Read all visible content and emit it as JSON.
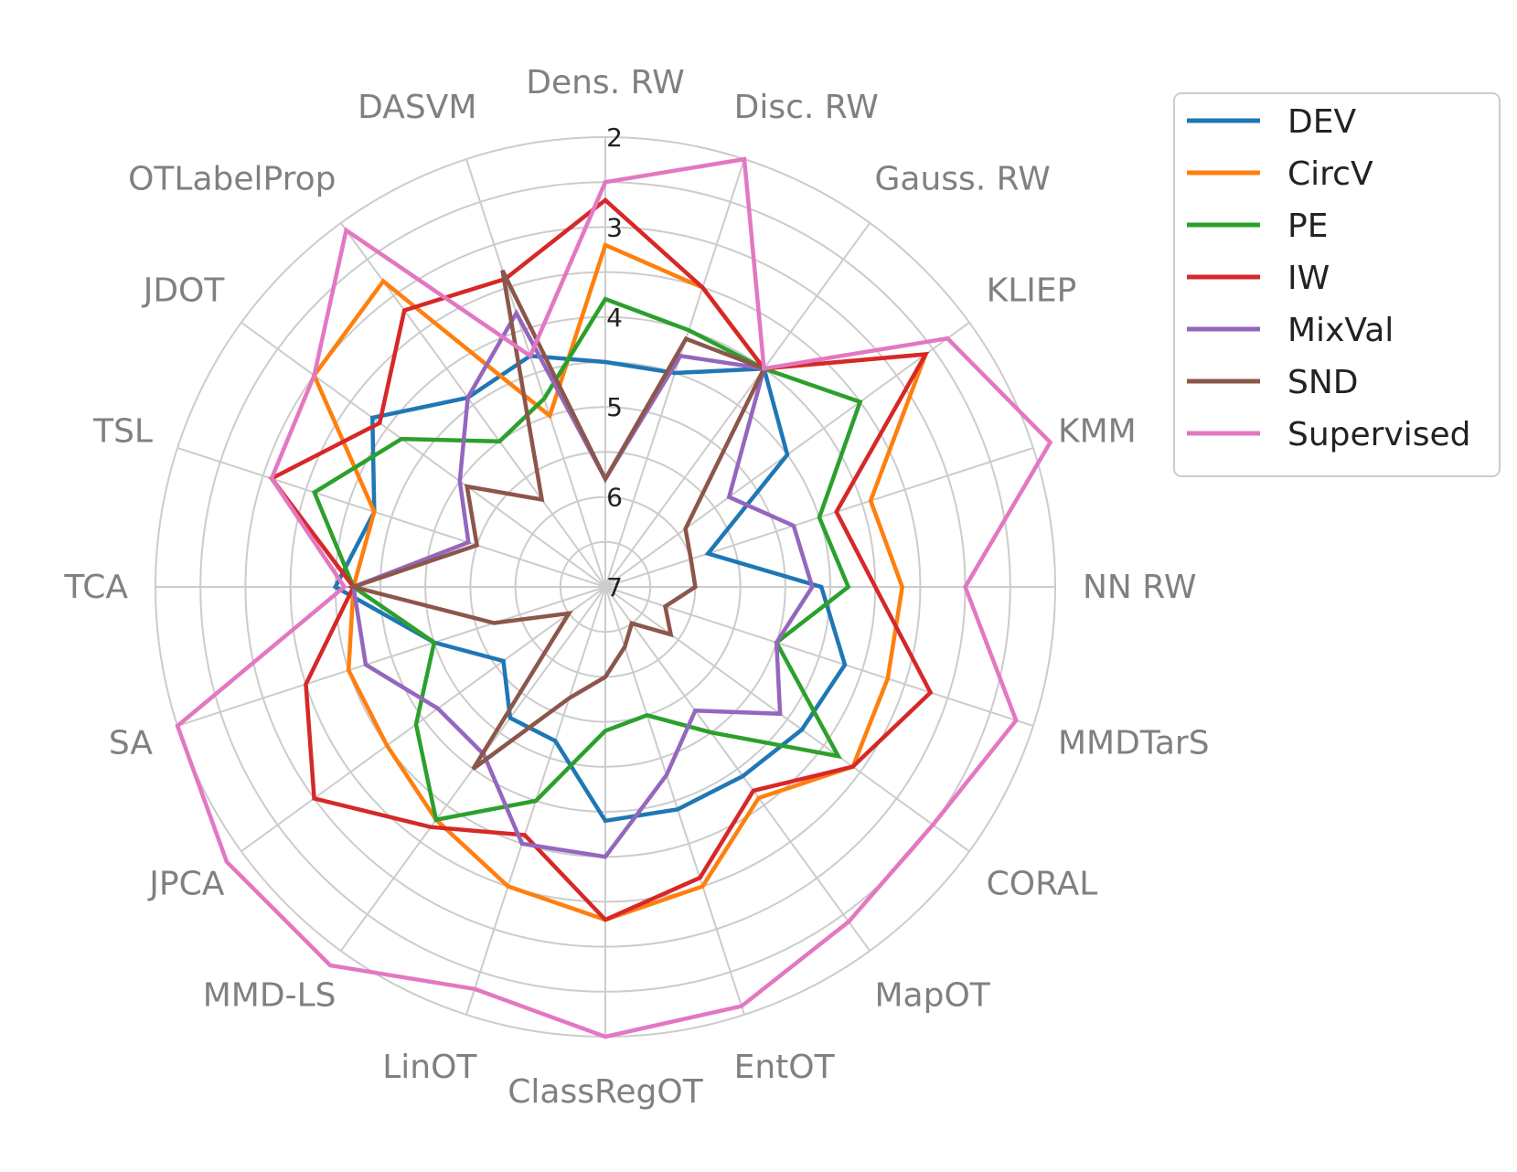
{
  "chart_data": {
    "type": "radar",
    "title": "",
    "axes": [
      "Dens. RW",
      "Disc. RW",
      "Gauss. RW",
      "KLIEP",
      "KMM",
      "NN RW",
      "MMDTarS",
      "CORAL",
      "MapOT",
      "EntOT",
      "ClassRegOT",
      "LinOT",
      "MMD-LS",
      "JPCA",
      "SA",
      "TCA",
      "TSL",
      "JDOT",
      "OTLabelProp",
      "DASVM"
    ],
    "radial_ticks": [
      "7",
      "6",
      "5",
      "4",
      "3",
      "2"
    ],
    "radial_range": [
      7,
      2
    ],
    "grid": true,
    "legend_position": "top-right",
    "series": [
      {
        "name": "DEV",
        "color": "#1f77b4",
        "values": [
          4.5,
          4.5,
          4.0,
          4.5,
          5.8,
          4.6,
          4.2,
          4.3,
          4.4,
          4.4,
          4.4,
          5.2,
          5.2,
          5.6,
          5.0,
          4.0,
          4.3,
          3.8,
          4.4,
          4.3
        ]
      },
      {
        "name": "CircV",
        "color": "#ff7f0e",
        "values": [
          3.2,
          3.5,
          4.0,
          2.6,
          3.9,
          3.7,
          3.7,
          3.6,
          4.1,
          3.5,
          3.3,
          3.5,
          3.8,
          4.0,
          4.0,
          4.2,
          4.3,
          3.0,
          2.8,
          5.0
        ]
      },
      {
        "name": "PE",
        "color": "#2ca02c",
        "values": [
          3.8,
          4.0,
          4.0,
          3.5,
          4.5,
          4.3,
          5.0,
          3.8,
          5.0,
          5.5,
          5.4,
          4.5,
          3.8,
          4.4,
          5.0,
          4.2,
          3.6,
          4.2,
          5.0,
          4.8
        ]
      },
      {
        "name": "IW",
        "color": "#d62828",
        "values": [
          2.7,
          3.5,
          4.0,
          2.6,
          4.3,
          4.0,
          3.2,
          3.6,
          4.2,
          3.6,
          3.3,
          4.1,
          3.7,
          3.0,
          3.5,
          4.2,
          3.1,
          3.9,
          3.2,
          3.4
        ]
      },
      {
        "name": "MixVal",
        "color": "#9467bd",
        "values": [
          5.8,
          4.3,
          4.0,
          5.3,
          4.8,
          4.7,
          5.0,
          4.6,
          5.3,
          4.8,
          4.0,
          4.0,
          4.7,
          4.7,
          4.2,
          4.2,
          5.4,
          5.0,
          4.4,
          3.8
        ]
      },
      {
        "name": "SND",
        "color": "#8c564b",
        "values": [
          5.8,
          4.1,
          4.0,
          5.9,
          6.0,
          6.0,
          6.3,
          6.1,
          6.5,
          6.3,
          6.0,
          5.7,
          4.5,
          6.5,
          5.7,
          4.2,
          5.5,
          5.1,
          5.8,
          3.3
        ]
      },
      {
        "name": "Supervised",
        "color": "#e377c2",
        "values": [
          2.5,
          2.0,
          4.0,
          2.3,
          1.8,
          3.0,
          2.2,
          2.5,
          2.4,
          2.1,
          2.0,
          2.3,
          1.8,
          1.8,
          2.0,
          4.1,
          3.1,
          3.0,
          2.1,
          4.3
        ]
      }
    ]
  }
}
